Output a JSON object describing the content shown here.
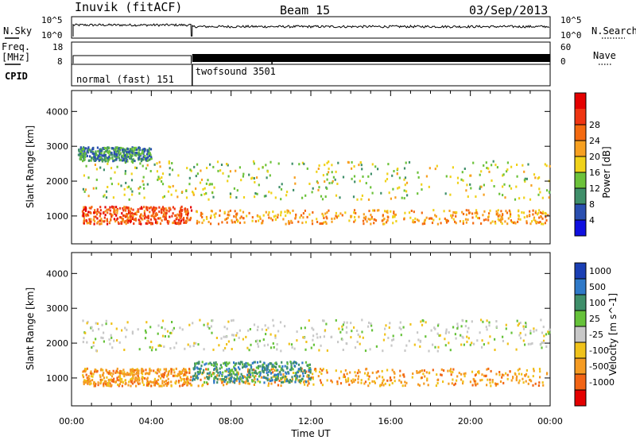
{
  "header": {
    "station": "Inuvik (fitACF)",
    "beam": "Beam 15",
    "date": "03/Sep/2013"
  },
  "noise_panel": {
    "left_label": "N.Sky",
    "right_label": "N.Search",
    "left_ticks": [
      "10^5",
      "10^0"
    ],
    "right_ticks": [
      "10^5",
      "10^0"
    ]
  },
  "freq_panel": {
    "left_label_1": "Freq.",
    "left_label_2": "[MHz]",
    "left_ticks": [
      "18",
      "8"
    ],
    "right_label": "Nave",
    "right_ticks": [
      "60",
      "0"
    ]
  },
  "cpid_panel": {
    "label": "CPID",
    "modes": [
      {
        "name": "normal (fast) 151",
        "start_hour": 0.0,
        "end_hour": 6.05
      },
      {
        "name": "twofsound 3501",
        "start_hour": 6.05,
        "end_hour": 24.0
      }
    ]
  },
  "chart_data": [
    {
      "type": "heatmap",
      "title": "",
      "xlabel": "Time UT",
      "ylabel": "Slant Range [km]",
      "xlim": [
        0,
        24
      ],
      "ylim": [
        200,
        4600
      ],
      "x_tick_labels": [
        "00:00",
        "04:00",
        "08:00",
        "12:00",
        "16:00",
        "20:00",
        "00:00"
      ],
      "y_ticks": [
        1000,
        2000,
        3000,
        4000
      ],
      "colorbar": {
        "label": "Power [dB]",
        "ticks": [
          "4",
          "8",
          "12",
          "16",
          "20",
          "24",
          "28"
        ],
        "colors": [
          "#1010e0",
          "#2a4fb0",
          "#3f8f6a",
          "#6cc23a",
          "#f0d21a",
          "#f7a020",
          "#f46a10",
          "#ef3512",
          "#e40000"
        ]
      },
      "scatter_bands": [
        {
          "x": [
            0.5,
            6.0
          ],
          "y": [
            800,
            1300
          ],
          "value": 26
        },
        {
          "x": [
            6.2,
            24.0
          ],
          "y": [
            800,
            1200
          ],
          "value": 20
        },
        {
          "x": [
            0.5,
            24.0
          ],
          "y": [
            1500,
            2600
          ],
          "value": 14
        },
        {
          "x": [
            0.3,
            4.0
          ],
          "y": [
            2600,
            3000
          ],
          "value": 8
        }
      ]
    },
    {
      "type": "heatmap",
      "title": "",
      "xlabel": "Time UT",
      "ylabel": "Slant Range [km]",
      "xlim": [
        0,
        24
      ],
      "ylim": [
        200,
        4600
      ],
      "x_tick_labels": [
        "00:00",
        "04:00",
        "08:00",
        "12:00",
        "16:00",
        "20:00",
        "00:00"
      ],
      "y_ticks": [
        1000,
        2000,
        3000,
        4000
      ],
      "colorbar": {
        "label": "Velocity [m s^-1]",
        "ticks": [
          "1000",
          "500",
          "100",
          "25",
          "-25",
          "-100",
          "-500",
          "-1000"
        ],
        "colors": [
          "#1a3fb4",
          "#2f79c8",
          "#3f8f6a",
          "#66c23a",
          "#c8c8c8",
          "#f0c21a",
          "#f59b22",
          "#f26414",
          "#e40000"
        ]
      },
      "scatter_bands": [
        {
          "x": [
            0.5,
            6.0
          ],
          "y": [
            800,
            1300
          ],
          "value": -300
        },
        {
          "x": [
            6.2,
            24.0
          ],
          "y": [
            800,
            1300
          ],
          "value": -200
        },
        {
          "x": [
            0.5,
            24.0
          ],
          "y": [
            1800,
            2700
          ],
          "value": 0
        },
        {
          "x": [
            6.0,
            12.0
          ],
          "y": [
            900,
            1500
          ],
          "value": 150
        }
      ]
    }
  ]
}
